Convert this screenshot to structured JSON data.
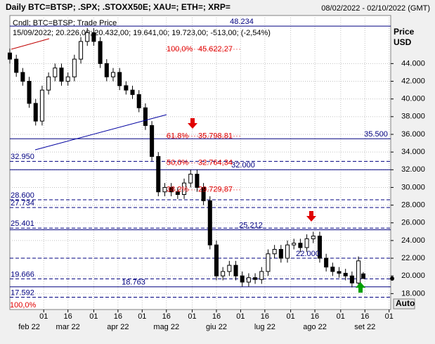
{
  "chart_data": {
    "type": "candlestick",
    "title": "Daily BTC=BTSP; .SPX; .STOXX50E; XAU=; ETH=; XRP=",
    "date_range": "08/02/2022 - 02/10/2022 (GMT)",
    "legend_line": "Cndl; BTC=BTSP; Trade Price",
    "info_line": "15/09/2022; 20.226,00; 20.432,00; 19.641,00; 19.723,00; -513,00; (-2,54%)",
    "y_axis_title": "Price",
    "y_axis_unit": "USD",
    "auto_button": "Auto",
    "up_color": "#ffffff",
    "down_color": "#000000",
    "grid": true,
    "xlim": [
      0,
      236
    ],
    "ylim": [
      16200,
      48800
    ],
    "yticks": [
      {
        "value": 44000,
        "label": "44.000"
      },
      {
        "value": 42000,
        "label": "42.000"
      },
      {
        "value": 40000,
        "label": "40.000"
      },
      {
        "value": 38000,
        "label": "38.000"
      },
      {
        "value": 36000,
        "label": "36.000"
      },
      {
        "value": 34000,
        "label": "34.000"
      },
      {
        "value": 32000,
        "label": "32.000"
      },
      {
        "value": 30000,
        "label": "30.000"
      },
      {
        "value": 28000,
        "label": "28.000"
      },
      {
        "value": 26000,
        "label": "26.000"
      },
      {
        "value": 24000,
        "label": "24.000"
      },
      {
        "value": 22000,
        "label": "22.000"
      },
      {
        "value": 20000,
        "label": "20.000"
      },
      {
        "value": 18000,
        "label": "18.000"
      }
    ],
    "xticks": [
      {
        "value": 21,
        "label": "01"
      },
      {
        "value": 36,
        "label": "16"
      },
      {
        "value": 52,
        "label": "01"
      },
      {
        "value": 67,
        "label": "16"
      },
      {
        "value": 82,
        "label": "01"
      },
      {
        "value": 97,
        "label": "16"
      },
      {
        "value": 113,
        "label": "01"
      },
      {
        "value": 128,
        "label": "16"
      },
      {
        "value": 143,
        "label": "01"
      },
      {
        "value": 158,
        "label": "16"
      },
      {
        "value": 174,
        "label": "01"
      },
      {
        "value": 189,
        "label": "16"
      },
      {
        "value": 205,
        "label": "01"
      },
      {
        "value": 220,
        "label": "16"
      },
      {
        "value": 235,
        "label": "01"
      }
    ],
    "month_labels": [
      {
        "value": 12,
        "label": "feb 22"
      },
      {
        "value": 36,
        "label": "mar 22"
      },
      {
        "value": 67,
        "label": "apr 22"
      },
      {
        "value": 97,
        "label": "mag 22"
      },
      {
        "value": 128,
        "label": "giu 22"
      },
      {
        "value": 158,
        "label": "lug 22"
      },
      {
        "value": 189,
        "label": "ago 22"
      },
      {
        "value": 220,
        "label": "set 22"
      }
    ],
    "x": [
      0,
      4,
      8,
      12,
      16,
      20,
      24,
      28,
      32,
      36,
      40,
      44,
      48,
      52,
      56,
      60,
      64,
      68,
      72,
      76,
      80,
      84,
      88,
      92,
      96,
      100,
      104,
      108,
      112,
      116,
      120,
      124,
      128,
      132,
      136,
      140,
      144,
      148,
      152,
      156,
      160,
      164,
      168,
      172,
      176,
      180,
      184,
      188,
      192,
      196,
      200,
      204,
      208,
      212,
      216,
      219
    ],
    "open": [
      45200,
      44500,
      43000,
      42000,
      39500,
      37500,
      41000,
      42500,
      43500,
      42000,
      42500,
      44500,
      46500,
      47500,
      46500,
      44000,
      42500,
      43000,
      41500,
      41000,
      40500,
      39000,
      37000,
      33500,
      29500,
      30000,
      29500,
      29200,
      30500,
      31500,
      30000,
      28500,
      23500,
      20000,
      20500,
      21200,
      20000,
      19300,
      19800,
      19600,
      20500,
      22500,
      23000,
      22000,
      23500,
      23700,
      23200,
      24200,
      24500,
      22000,
      21000,
      20500,
      20300,
      20000,
      19200,
      20226
    ],
    "high": [
      45700,
      45000,
      43500,
      42500,
      40000,
      41500,
      43000,
      44000,
      44000,
      43000,
      45000,
      47000,
      48000,
      48000,
      47000,
      44500,
      43500,
      43500,
      42000,
      41500,
      41000,
      39500,
      37500,
      34000,
      30500,
      30500,
      30000,
      31000,
      32000,
      32000,
      30500,
      29000,
      24000,
      21000,
      21700,
      21700,
      20500,
      20300,
      20300,
      21000,
      23000,
      23500,
      23500,
      24000,
      24200,
      24200,
      24700,
      25000,
      25000,
      22500,
      21500,
      21000,
      20800,
      20500,
      22200,
      20432
    ],
    "low": [
      44000,
      42500,
      41500,
      39000,
      37000,
      37000,
      40500,
      42000,
      41500,
      41500,
      42000,
      44000,
      46000,
      46000,
      43500,
      42000,
      42000,
      41000,
      40500,
      40000,
      38500,
      36500,
      33000,
      29000,
      29000,
      29000,
      28700,
      28700,
      30000,
      29500,
      28000,
      23000,
      19500,
      19500,
      20000,
      19500,
      18800,
      18800,
      19100,
      19100,
      20000,
      22000,
      21500,
      21500,
      23000,
      22700,
      22700,
      23700,
      21500,
      20500,
      20000,
      19800,
      19500,
      18700,
      18700,
      19641
    ],
    "close": [
      44500,
      43000,
      42000,
      39500,
      37500,
      41000,
      42500,
      43500,
      42000,
      42500,
      44500,
      46500,
      47500,
      46500,
      44000,
      42500,
      43000,
      41500,
      41000,
      40500,
      39000,
      37000,
      33500,
      29500,
      30000,
      29500,
      29200,
      30500,
      31500,
      30000,
      28500,
      23500,
      20000,
      20500,
      21200,
      20000,
      19300,
      19800,
      19600,
      20500,
      22500,
      23000,
      22000,
      23500,
      23700,
      23200,
      24200,
      24500,
      22000,
      21000,
      20500,
      20300,
      20000,
      19200,
      21700,
      19723
    ],
    "levels": [
      {
        "value": 48234,
        "label": "48.234",
        "style": "solid"
      },
      {
        "value": 35500,
        "label": "35.500",
        "style": "solid"
      },
      {
        "value": 32950,
        "label": "32.950",
        "style": "dashed"
      },
      {
        "value": 32000,
        "label": "32.000",
        "style": "solid"
      },
      {
        "value": 28600,
        "label": "28.600",
        "style": "dashed"
      },
      {
        "value": 27734,
        "label": "27.734",
        "style": "dashed"
      },
      {
        "value": 25401,
        "label": "25.401",
        "style": "dashed"
      },
      {
        "value": 25212,
        "label": "25.212",
        "style": "solid"
      },
      {
        "value": 22000,
        "label": "22.000",
        "style": "dashed"
      },
      {
        "value": 19666,
        "label": "19.666",
        "style": "dashed"
      },
      {
        "value": 18763,
        "label": "18.763",
        "style": "solid"
      },
      {
        "value": 17592,
        "label": "17.592",
        "style": "dashed"
      }
    ],
    "fib_levels": [
      {
        "pct": {
          "value": 100,
          "label": "100,0%"
        },
        "price": {
          "value": 45622.27,
          "label": "45.622,27"
        }
      },
      {
        "pct": {
          "value": 61.8,
          "label": "61,8%"
        },
        "price": {
          "value": 35798.81,
          "label": "35.798,81"
        }
      },
      {
        "pct": {
          "value": 50,
          "label": "50,0%"
        },
        "price": {
          "value": 32764.34,
          "label": "32.764,34"
        }
      },
      {
        "pct": {
          "value": 38.2,
          "label": "38,2%"
        },
        "price": {
          "value": 29729.87,
          "label": "29.729,87"
        }
      }
    ],
    "fib_bottom_label": "100,0%"
  }
}
